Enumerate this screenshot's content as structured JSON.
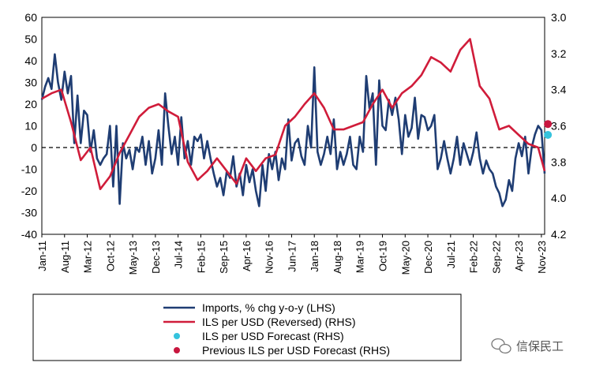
{
  "chart_data": {
    "type": "line",
    "lhs_axis": {
      "min": -40,
      "max": 60,
      "step": 10,
      "ticks": [
        "60",
        "50",
        "40",
        "30",
        "20",
        "10",
        "0",
        "-10",
        "-20",
        "-30",
        "-40"
      ]
    },
    "rhs_axis": {
      "min": 3.0,
      "max": 4.2,
      "reversed": true,
      "ticks": [
        "3.0",
        "3.2",
        "3.4",
        "3.6",
        "3.8",
        "4.0",
        "4.2"
      ]
    },
    "x_range": [
      "2011-01",
      "2023-12"
    ],
    "x_tick_labels": [
      "Jan-11",
      "Aug-11",
      "Mar-12",
      "Oct-12",
      "May-13",
      "Dec-13",
      "Jul-14",
      "Feb-15",
      "Sep-15",
      "Apr-16",
      "Nov-16",
      "Jun-17",
      "Jan-18",
      "Aug-18",
      "Mar-19",
      "Oct-19",
      "May-20",
      "Dec-20",
      "Jul-21",
      "Feb-22",
      "Sep-22",
      "Apr-23",
      "Nov-23"
    ],
    "zero_line": "dashed",
    "series": [
      {
        "name": "Imports, % chg y-o-y (LHS)",
        "axis": "left",
        "color": "#1f3d73",
        "points": [
          [
            "2011-01",
            22
          ],
          [
            "2011-02",
            28
          ],
          [
            "2011-03",
            32
          ],
          [
            "2011-04",
            27
          ],
          [
            "2011-05",
            43
          ],
          [
            "2011-06",
            30
          ],
          [
            "2011-07",
            22
          ],
          [
            "2011-08",
            35
          ],
          [
            "2011-09",
            25
          ],
          [
            "2011-10",
            33
          ],
          [
            "2011-11",
            2
          ],
          [
            "2011-12",
            24
          ],
          [
            "2012-01",
            2
          ],
          [
            "2012-02",
            17
          ],
          [
            "2012-03",
            15
          ],
          [
            "2012-04",
            -2
          ],
          [
            "2012-05",
            8
          ],
          [
            "2012-06",
            -5
          ],
          [
            "2012-07",
            -8
          ],
          [
            "2012-08",
            -5
          ],
          [
            "2012-09",
            -3
          ],
          [
            "2012-10",
            10
          ],
          [
            "2012-11",
            -18
          ],
          [
            "2012-12",
            10
          ],
          [
            "2013-01",
            -26
          ],
          [
            "2013-02",
            2
          ],
          [
            "2013-03",
            -5
          ],
          [
            "2013-04",
            -1
          ],
          [
            "2013-05",
            -10
          ],
          [
            "2013-06",
            0
          ],
          [
            "2013-07",
            -2
          ],
          [
            "2013-08",
            5
          ],
          [
            "2013-09",
            -8
          ],
          [
            "2013-10",
            3
          ],
          [
            "2013-11",
            -12
          ],
          [
            "2013-12",
            -5
          ],
          [
            "2014-01",
            8
          ],
          [
            "2014-02",
            -8
          ],
          [
            "2014-03",
            25
          ],
          [
            "2014-04",
            10
          ],
          [
            "2014-05",
            -3
          ],
          [
            "2014-06",
            5
          ],
          [
            "2014-07",
            -8
          ],
          [
            "2014-08",
            14
          ],
          [
            "2014-09",
            -5
          ],
          [
            "2014-10",
            3
          ],
          [
            "2014-11",
            -8
          ],
          [
            "2014-12",
            5
          ],
          [
            "2015-01",
            3
          ],
          [
            "2015-02",
            6
          ],
          [
            "2015-03",
            -5
          ],
          [
            "2015-04",
            3
          ],
          [
            "2015-05",
            -5
          ],
          [
            "2015-06",
            -12
          ],
          [
            "2015-07",
            -18
          ],
          [
            "2015-08",
            -14
          ],
          [
            "2015-09",
            -22
          ],
          [
            "2015-10",
            -11
          ],
          [
            "2015-11",
            -14
          ],
          [
            "2015-12",
            -4
          ],
          [
            "2016-01",
            -18
          ],
          [
            "2016-02",
            -12
          ],
          [
            "2016-03",
            -22
          ],
          [
            "2016-04",
            -8
          ],
          [
            "2016-05",
            -16
          ],
          [
            "2016-06",
            -10
          ],
          [
            "2016-07",
            -20
          ],
          [
            "2016-08",
            -27
          ],
          [
            "2016-09",
            -8
          ],
          [
            "2016-10",
            -20
          ],
          [
            "2016-11",
            -3
          ],
          [
            "2016-12",
            -10
          ],
          [
            "2017-01",
            -2
          ],
          [
            "2017-02",
            -15
          ],
          [
            "2017-03",
            -5
          ],
          [
            "2017-04",
            -10
          ],
          [
            "2017-05",
            13
          ],
          [
            "2017-06",
            -6
          ],
          [
            "2017-07",
            2
          ],
          [
            "2017-08",
            4
          ],
          [
            "2017-09",
            -4
          ],
          [
            "2017-10",
            -8
          ],
          [
            "2017-11",
            10
          ],
          [
            "2017-12",
            0
          ],
          [
            "2018-01",
            37
          ],
          [
            "2018-02",
            -2
          ],
          [
            "2018-03",
            -8
          ],
          [
            "2018-04",
            -3
          ],
          [
            "2018-05",
            5
          ],
          [
            "2018-06",
            -3
          ],
          [
            "2018-07",
            13
          ],
          [
            "2018-08",
            -10
          ],
          [
            "2018-09",
            -2
          ],
          [
            "2018-10",
            -8
          ],
          [
            "2018-11",
            -3
          ],
          [
            "2018-12",
            5
          ],
          [
            "2019-01",
            -8
          ],
          [
            "2019-02",
            -10
          ],
          [
            "2019-03",
            5
          ],
          [
            "2019-04",
            -2
          ],
          [
            "2019-05",
            33
          ],
          [
            "2019-06",
            18
          ],
          [
            "2019-07",
            25
          ],
          [
            "2019-08",
            -8
          ],
          [
            "2019-09",
            31
          ],
          [
            "2019-10",
            10
          ],
          [
            "2019-11",
            8
          ],
          [
            "2019-12",
            22
          ],
          [
            "2020-01",
            15
          ],
          [
            "2020-02",
            23
          ],
          [
            "2020-03",
            13
          ],
          [
            "2020-04",
            -3
          ],
          [
            "2020-05",
            15
          ],
          [
            "2020-06",
            5
          ],
          [
            "2020-07",
            9
          ],
          [
            "2020-08",
            23
          ],
          [
            "2020-09",
            4
          ],
          [
            "2020-10",
            15
          ],
          [
            "2020-11",
            14
          ],
          [
            "2020-12",
            8
          ],
          [
            "2021-01",
            10
          ],
          [
            "2021-02",
            15
          ],
          [
            "2021-03",
            -10
          ],
          [
            "2021-04",
            -5
          ],
          [
            "2021-05",
            3
          ],
          [
            "2021-06",
            -5
          ],
          [
            "2021-07",
            -12
          ],
          [
            "2021-08",
            -5
          ],
          [
            "2021-09",
            5
          ],
          [
            "2021-10",
            -8
          ],
          [
            "2021-11",
            2
          ],
          [
            "2021-12",
            -3
          ],
          [
            "2022-01",
            -8
          ],
          [
            "2022-02",
            -2
          ],
          [
            "2022-03",
            7
          ],
          [
            "2022-04",
            -5
          ],
          [
            "2022-05",
            -12
          ],
          [
            "2022-06",
            -6
          ],
          [
            "2022-07",
            -10
          ],
          [
            "2022-08",
            -12
          ],
          [
            "2022-09",
            -18
          ],
          [
            "2022-10",
            -21
          ],
          [
            "2022-11",
            -27
          ],
          [
            "2022-12",
            -24
          ],
          [
            "2023-01",
            -15
          ],
          [
            "2023-02",
            -20
          ],
          [
            "2023-03",
            -5
          ],
          [
            "2023-04",
            2
          ],
          [
            "2023-05",
            -4
          ],
          [
            "2023-06",
            5
          ],
          [
            "2023-07",
            -12
          ],
          [
            "2023-08",
            0
          ],
          [
            "2023-09",
            6
          ],
          [
            "2023-10",
            10
          ],
          [
            "2023-11",
            8
          ],
          [
            "2023-12",
            -12
          ]
        ]
      },
      {
        "name": "ILS per USD  (Reversed) (RHS)",
        "axis": "right",
        "color": "#d01c3a",
        "points": [
          [
            "2011-01",
            3.45
          ],
          [
            "2011-04",
            3.42
          ],
          [
            "2011-07",
            3.4
          ],
          [
            "2011-10",
            3.58
          ],
          [
            "2012-01",
            3.79
          ],
          [
            "2012-04",
            3.72
          ],
          [
            "2012-07",
            3.95
          ],
          [
            "2012-10",
            3.88
          ],
          [
            "2013-01",
            3.75
          ],
          [
            "2013-04",
            3.65
          ],
          [
            "2013-07",
            3.55
          ],
          [
            "2013-10",
            3.5
          ],
          [
            "2014-01",
            3.48
          ],
          [
            "2014-04",
            3.52
          ],
          [
            "2014-07",
            3.55
          ],
          [
            "2014-10",
            3.8
          ],
          [
            "2015-01",
            3.9
          ],
          [
            "2015-04",
            3.85
          ],
          [
            "2015-07",
            3.78
          ],
          [
            "2015-10",
            3.85
          ],
          [
            "2016-01",
            3.92
          ],
          [
            "2016-04",
            3.78
          ],
          [
            "2016-07",
            3.85
          ],
          [
            "2016-10",
            3.78
          ],
          [
            "2017-01",
            3.76
          ],
          [
            "2017-04",
            3.6
          ],
          [
            "2017-07",
            3.55
          ],
          [
            "2017-10",
            3.48
          ],
          [
            "2018-01",
            3.42
          ],
          [
            "2018-04",
            3.5
          ],
          [
            "2018-07",
            3.62
          ],
          [
            "2018-10",
            3.62
          ],
          [
            "2019-01",
            3.6
          ],
          [
            "2019-04",
            3.58
          ],
          [
            "2019-07",
            3.48
          ],
          [
            "2019-10",
            3.4
          ],
          [
            "2020-01",
            3.5
          ],
          [
            "2020-04",
            3.42
          ],
          [
            "2020-07",
            3.38
          ],
          [
            "2020-10",
            3.32
          ],
          [
            "2021-01",
            3.22
          ],
          [
            "2021-04",
            3.25
          ],
          [
            "2021-07",
            3.3
          ],
          [
            "2021-10",
            3.18
          ],
          [
            "2022-01",
            3.12
          ],
          [
            "2022-04",
            3.38
          ],
          [
            "2022-07",
            3.45
          ],
          [
            "2022-10",
            3.62
          ],
          [
            "2023-01",
            3.6
          ],
          [
            "2023-04",
            3.65
          ],
          [
            "2023-07",
            3.7
          ],
          [
            "2023-10",
            3.72
          ],
          [
            "2023-12",
            3.85
          ]
        ]
      },
      {
        "name": "ILS per USD  Forecast (RHS)",
        "axis": "right",
        "color": "#35c3dd",
        "marker": "dot",
        "points": [
          [
            "2024-01",
            3.65
          ]
        ]
      },
      {
        "name": "Previous ILS per USD  Forecast (RHS)",
        "axis": "right",
        "color": "#c8163f",
        "marker": "dot",
        "points": [
          [
            "2024-01",
            3.59
          ]
        ]
      }
    ],
    "legend_position": "bottom"
  },
  "watermark": "信保民工"
}
